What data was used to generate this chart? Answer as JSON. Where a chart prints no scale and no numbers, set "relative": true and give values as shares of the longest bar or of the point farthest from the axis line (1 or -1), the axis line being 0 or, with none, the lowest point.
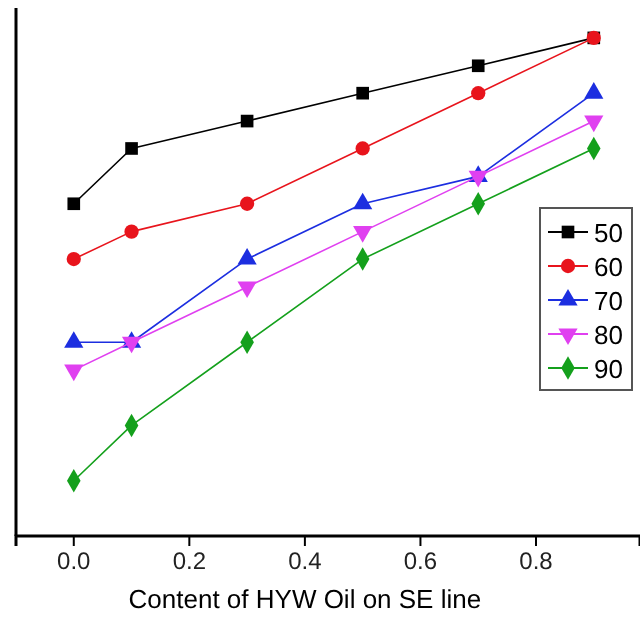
{
  "chart_data": {
    "type": "line",
    "xlabel": "Content of HYW Oil on SE line",
    "relative": true,
    "x": [
      0,
      0.1,
      0.3,
      0.5,
      0.7,
      0.9
    ],
    "xlim": [
      -0.1,
      0.98
    ],
    "xticks": [
      {
        "value": 0,
        "label": "0.0"
      },
      {
        "value": 0.2,
        "label": "0.2"
      },
      {
        "value": 0.4,
        "label": "0.4"
      },
      {
        "value": 0.6,
        "label": "0.6"
      },
      {
        "value": 0.8,
        "label": "0.8"
      }
    ],
    "tick_labels": "x",
    "legend": "right",
    "grid": false,
    "series": [
      {
        "name": "50",
        "color": "#000000",
        "marker": "square",
        "values": [
          0.667,
          0.778,
          0.833,
          0.889,
          0.944,
          1
        ]
      },
      {
        "name": "60",
        "color": "#e8141c",
        "marker": "circle",
        "values": [
          0.556,
          0.611,
          0.667,
          0.778,
          0.889,
          1
        ]
      },
      {
        "name": "70",
        "color": "#1c2ee0",
        "marker": "triangle",
        "values": [
          0.389,
          0.389,
          0.556,
          0.667,
          0.722,
          0.889
        ]
      },
      {
        "name": "80",
        "color": "#e040f0",
        "marker": "triangle-down",
        "values": [
          0.333,
          0.389,
          0.5,
          0.611,
          0.722,
          0.833
        ]
      },
      {
        "name": "90",
        "color": "#14a01c",
        "marker": "diamond",
        "values": [
          0.111,
          0.222,
          0.389,
          0.556,
          0.667,
          0.778
        ]
      }
    ]
  }
}
